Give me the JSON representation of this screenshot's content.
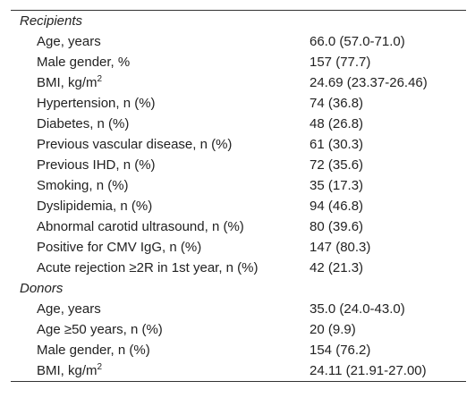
{
  "sections": [
    {
      "title": "Recipients",
      "rows": [
        {
          "label": "Age, years",
          "value": "66.0 (57.0-71.0)"
        },
        {
          "label": "Male gender, %",
          "value": "157 (77.7)"
        },
        {
          "label": "BMI, kg/m",
          "label_sup": "2",
          "value": "24.69 (23.37-26.46)"
        },
        {
          "label": "Hypertension, n (%)",
          "value": "74 (36.8)"
        },
        {
          "label": "Diabetes, n (%)",
          "value": "48 (26.8)"
        },
        {
          "label": "Previous vascular disease, n (%)",
          "value": "61 (30.3)"
        },
        {
          "label": "Previous IHD, n (%)",
          "value": "72 (35.6)"
        },
        {
          "label": "Smoking, n (%)",
          "value": "35 (17.3)"
        },
        {
          "label": "Dyslipidemia, n (%)",
          "value": "94 (46.8)"
        },
        {
          "label": "Abnormal carotid ultrasound, n (%)",
          "value": "80 (39.6)"
        },
        {
          "label": "Positive for CMV IgG, n (%)",
          "value": "147 (80.3)"
        },
        {
          "label": "Acute rejection ≥2R in 1st year, n (%)",
          "value": "42 (21.3)"
        }
      ]
    },
    {
      "title": "Donors",
      "rows": [
        {
          "label": "Age, years",
          "value": "35.0 (24.0-43.0)"
        },
        {
          "label": "Age ≥50 years, n (%)",
          "value": "20 (9.9)"
        },
        {
          "label": "Male gender, n (%)",
          "value": "154 (76.2)"
        },
        {
          "label": "BMI, kg/m",
          "label_sup": "2",
          "value": "24.11 (21.91-27.00)"
        }
      ]
    }
  ]
}
